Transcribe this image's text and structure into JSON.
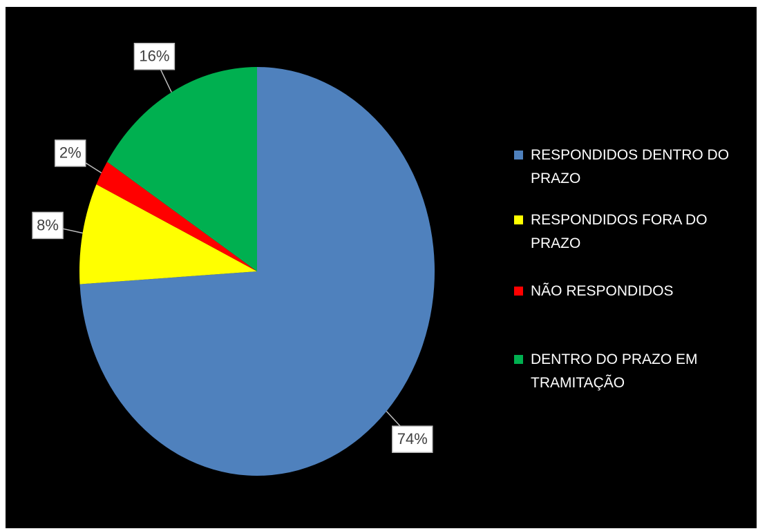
{
  "chart_data": {
    "type": "pie",
    "categories": [
      "RESPONDIDOS DENTRO DO PRAZO",
      "RESPONDIDOS FORA DO PRAZO",
      "NÃO RESPONDIDOS",
      "DENTRO DO PRAZO EM TRAMITAÇÃO"
    ],
    "values": [
      74,
      8,
      2,
      16
    ],
    "value_labels": [
      "74%",
      "8%",
      "2%",
      "16%"
    ],
    "colors": [
      "#4f81bd",
      "#ffff00",
      "#ff0000",
      "#00b050"
    ],
    "legend": "right"
  }
}
